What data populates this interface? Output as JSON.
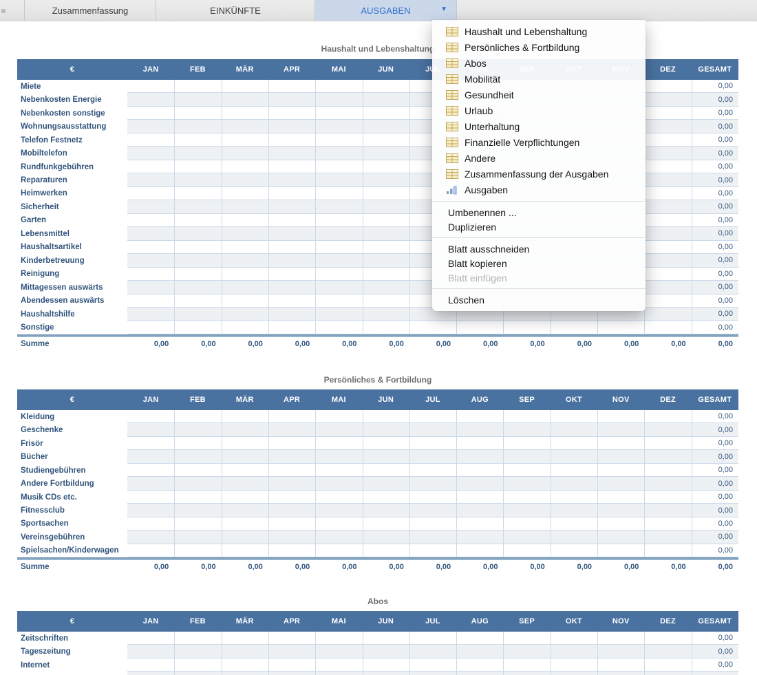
{
  "tab_bar": {
    "tabs": [
      {
        "label": "Zusammenfassung",
        "active": false
      },
      {
        "label": "EINKÜNFTE",
        "active": false
      },
      {
        "label": "AUSGABEN",
        "active": true
      }
    ],
    "dropdown_arrow": "▼"
  },
  "sheet_menu": {
    "sheet_items": [
      {
        "label": "Haushalt und Lebenshaltung",
        "icon": "table"
      },
      {
        "label": "Persönliches & Fortbildung",
        "icon": "table"
      },
      {
        "label": "Abos",
        "icon": "table"
      },
      {
        "label": "Mobilität",
        "icon": "table"
      },
      {
        "label": "Gesundheit",
        "icon": "table"
      },
      {
        "label": "Urlaub",
        "icon": "table"
      },
      {
        "label": "Unterhaltung",
        "icon": "table"
      },
      {
        "label": "Finanzielle Verpflichtungen",
        "icon": "table"
      },
      {
        "label": "Andere",
        "icon": "table"
      },
      {
        "label": "Zusammenfassung der Ausgaben",
        "icon": "table"
      },
      {
        "label": "Ausgaben",
        "icon": "chart"
      }
    ],
    "edit_items": [
      {
        "label": "Umbenennen ...",
        "disabled": false
      },
      {
        "label": "Duplizieren",
        "disabled": false
      }
    ],
    "sheet_commands": [
      {
        "label": "Blatt ausschneiden",
        "disabled": false
      },
      {
        "label": "Blatt kopieren",
        "disabled": false
      },
      {
        "label": "Blatt einfügen",
        "disabled": true
      }
    ],
    "delete_item": {
      "label": "Löschen",
      "disabled": false
    }
  },
  "table_common": {
    "currency_header": "€",
    "months": [
      "JAN",
      "FEB",
      "MÄR",
      "APR",
      "MAI",
      "JUN",
      "JUL",
      "AUG",
      "SEP",
      "OKT",
      "NOV",
      "DEZ"
    ],
    "total_header": "GESAMT",
    "sum_label": "Summe",
    "zero": "0,00",
    "month_cell_value": ""
  },
  "tables": [
    {
      "title": "Haushalt und Lebenshaltung",
      "rows": [
        "Miete",
        "Nebenkosten Energie",
        "Nebenkosten sonstige",
        "Wohnungsausstattung",
        "Telefon Festnetz",
        "Mobiltelefon",
        "Rundfunkgebühren",
        "Reparaturen",
        "Heimwerken",
        "Sicherheit",
        "Garten",
        "Lebensmittel",
        "Haushaltsartikel",
        "Kinderbetreuung",
        "Reinigung",
        "Mittagessen auswärts",
        "Abendessen auswärts",
        "Haushaltshilfe",
        "Sonstige"
      ],
      "row_total": "0,00",
      "sum_row_values": "0,00",
      "has_sum_row": true
    },
    {
      "title": "Persönliches & Fortbildung",
      "rows": [
        "Kleidung",
        "Geschenke",
        "Frisör",
        "Bücher",
        "Studiengebühren",
        "Andere Fortbildung",
        "Musik CDs etc.",
        "Fitnessclub",
        "Sportsachen",
        "Vereinsgebühren",
        "Spielsachen/Kinderwagen"
      ],
      "row_total": "0,00",
      "sum_row_values": "0,00",
      "has_sum_row": true
    },
    {
      "title": "Abos",
      "rows": [
        "Zeitschriften",
        "Tageszeitung",
        "Internet"
      ],
      "row_total": "0,00",
      "has_sum_row": false,
      "cut_off_at_bottom": true
    }
  ],
  "colors": {
    "table_header_bg": "#4a72a1",
    "row_label_text": "#31547c",
    "value_text": "#31547c",
    "gridline": "#ccd9e8",
    "stripe": "#edf1f4",
    "sum_border_dark": "#6b90b0",
    "sum_border_light": "#a5bed4",
    "active_tab_bg": "#cbd8ea",
    "active_tab_text": "#3570cf",
    "inactive_tab_text": "#3d3d3d",
    "title_text": "#6f6f6f",
    "menu_text": "#141414",
    "menu_disabled_text": "#b4b4b4",
    "table_icon_fill": "#f8edc2",
    "table_icon_stroke": "#c2a75e",
    "chart_icon_blue": "#7a9ed2"
  }
}
